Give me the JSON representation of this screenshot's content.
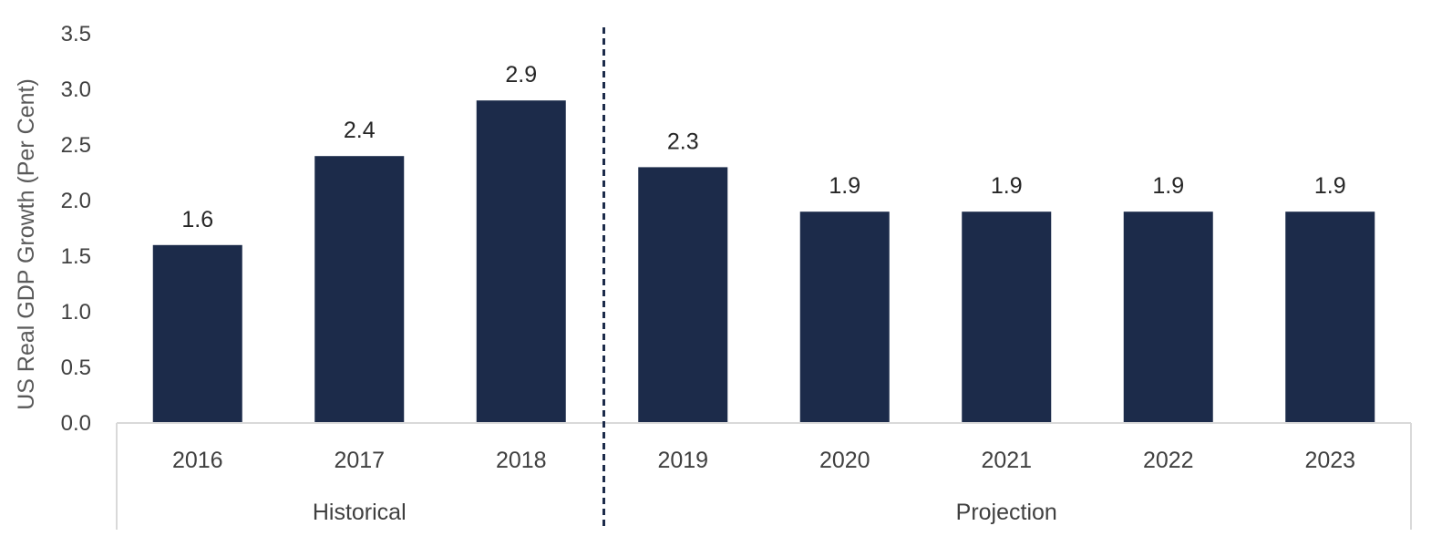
{
  "chart_data": {
    "type": "bar",
    "categories": [
      "2016",
      "2017",
      "2018",
      "2019",
      "2020",
      "2021",
      "2022",
      "2023"
    ],
    "series": [
      {
        "values": [
          1.6,
          2.4,
          2.9,
          2.3,
          1.9,
          1.9,
          1.9,
          1.9
        ]
      }
    ],
    "data_labels": [
      "1.6",
      "2.4",
      "2.9",
      "2.3",
      "1.9",
      "1.9",
      "1.9",
      "1.9"
    ],
    "groups": [
      {
        "label": "Historical",
        "categories": [
          "2016",
          "2017",
          "2018"
        ]
      },
      {
        "label": "Projection",
        "categories": [
          "2019",
          "2020",
          "2021",
          "2022",
          "2023"
        ]
      }
    ],
    "divider": {
      "style": "dashed",
      "between": [
        "2018",
        "2019"
      ]
    },
    "ylabel": "US Real GDP Growth (Per Cent)",
    "xlabel": "",
    "ylim": [
      0,
      3.5
    ],
    "yticks": [
      "0.0",
      "0.5",
      "1.0",
      "1.5",
      "2.0",
      "2.5",
      "3.0",
      "3.5"
    ],
    "grid": false,
    "legend": "none",
    "colors": {
      "bar": "#1C2B4A",
      "axis": "#D9D9D9",
      "divider": "#1C2B4A"
    }
  }
}
